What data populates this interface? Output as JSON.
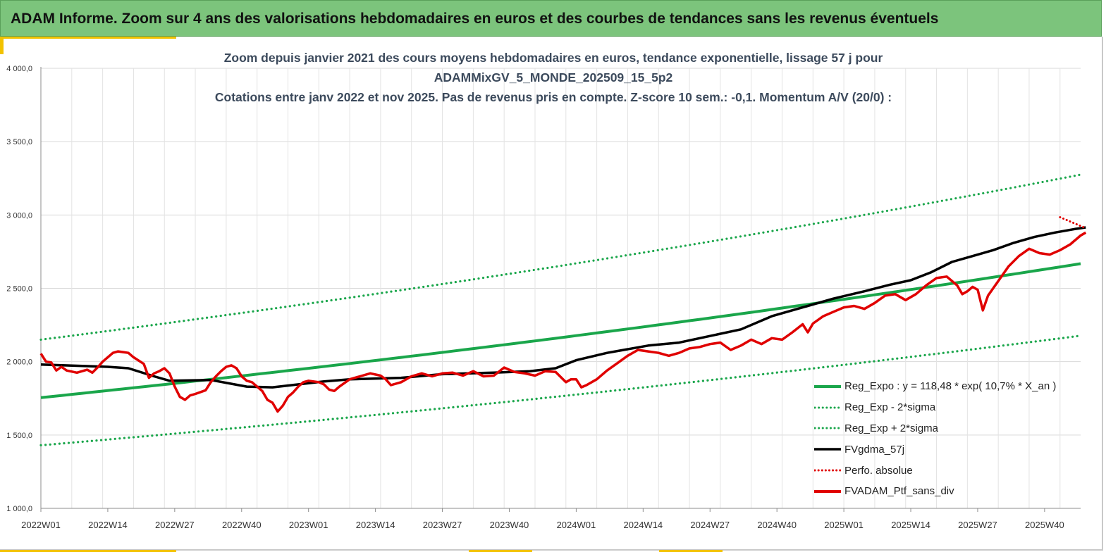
{
  "banner": {
    "title": "ADAM Informe. Zoom sur 4 ans des valorisations hebdomadaires en euros et des courbes de tendances sans les revenus éventuels"
  },
  "colors": {
    "banner_bg": "#7cc47c",
    "reg_expo": "#1aa64b",
    "sigma": "#1aa64b",
    "gdma": "#000000",
    "perfo": "#e00000",
    "ptf": "#e00000",
    "accent": "#f2c200"
  },
  "chart_data": {
    "type": "line",
    "title_lines": [
      "Zoom depuis janvier 2021 des cours moyens hebdomadaires  en euros, tendance exponentielle, lissage 57 j pour",
      "ADAMMixGV_5_MONDE_202509_15_5p2",
      "Cotations entre janv 2022 et nov 2025. Pas de revenus pris en compte. Z-score 10 sem.: -0,1. Momentum A/V (20/0) :"
    ],
    "ylim": [
      1000,
      4000
    ],
    "y_ticks": [
      "1 000,0",
      "1 500,0",
      "2 000,0",
      "2 500,0",
      "3 000,0",
      "3 500,0",
      "4 000,0"
    ],
    "y_tick_values": [
      1000,
      1500,
      2000,
      2500,
      3000,
      3500,
      4000
    ],
    "x_count": 203,
    "x_ticks": [
      "2022W01",
      "2022W14",
      "2022W27",
      "2022W40",
      "2023W01",
      "2023W14",
      "2023W27",
      "2023W40",
      "2024W01",
      "2024W14",
      "2024W27",
      "2024W40",
      "2025W01",
      "2025W14",
      "2025W27",
      "2025W40"
    ],
    "x_tick_index": [
      0,
      13,
      26,
      39,
      52,
      65,
      78,
      91,
      104,
      117,
      130,
      143,
      156,
      169,
      182,
      195
    ],
    "grid": true,
    "legend_position": "bottom-right",
    "series": [
      {
        "name": "Reg_Expo : y = 118,48 * exp( 10,7% *  X_an )",
        "style": "solid-thick",
        "formula": {
          "start": 1755,
          "end": 2668
        }
      },
      {
        "name": "Reg_Exp - 2*sigma",
        "style": "dotted",
        "formula": {
          "start": 1430,
          "end": 2177
        }
      },
      {
        "name": "Reg_Exp + 2*sigma",
        "style": "dotted",
        "formula": {
          "start": 2150,
          "end": 3275
        }
      },
      {
        "name": "FVgdma_57j",
        "style": "solid",
        "points": [
          [
            0,
            1980
          ],
          [
            13,
            1965
          ],
          [
            17,
            1955
          ],
          [
            22,
            1900
          ],
          [
            25,
            1870
          ],
          [
            33,
            1875
          ],
          [
            40,
            1830
          ],
          [
            45,
            1825
          ],
          [
            55,
            1865
          ],
          [
            60,
            1880
          ],
          [
            70,
            1890
          ],
          [
            78,
            1915
          ],
          [
            88,
            1925
          ],
          [
            95,
            1935
          ],
          [
            100,
            1955
          ],
          [
            104,
            2010
          ],
          [
            110,
            2060
          ],
          [
            118,
            2110
          ],
          [
            124,
            2130
          ],
          [
            130,
            2175
          ],
          [
            136,
            2220
          ],
          [
            142,
            2310
          ],
          [
            148,
            2370
          ],
          [
            154,
            2430
          ],
          [
            160,
            2480
          ],
          [
            165,
            2525
          ],
          [
            169,
            2555
          ],
          [
            173,
            2610
          ],
          [
            177,
            2680
          ],
          [
            181,
            2720
          ],
          [
            185,
            2760
          ],
          [
            189,
            2810
          ],
          [
            193,
            2850
          ],
          [
            197,
            2880
          ],
          [
            201,
            2905
          ],
          [
            203,
            2915
          ]
        ]
      },
      {
        "name": "Perfo. absolue",
        "style": "dotted",
        "points": [
          [
            198,
            2985
          ],
          [
            201,
            2940
          ],
          [
            203,
            2910
          ]
        ]
      },
      {
        "name": "FVADAM_Ptf_sans_div",
        "style": "solid-thick",
        "points": [
          [
            0,
            2055
          ],
          [
            1,
            2000
          ],
          [
            2,
            1995
          ],
          [
            3,
            1940
          ],
          [
            4,
            1965
          ],
          [
            5,
            1940
          ],
          [
            7,
            1925
          ],
          [
            9,
            1945
          ],
          [
            10,
            1925
          ],
          [
            11,
            1960
          ],
          [
            12,
            2000
          ],
          [
            13,
            2030
          ],
          [
            14,
            2060
          ],
          [
            15,
            2070
          ],
          [
            16,
            2065
          ],
          [
            17,
            2060
          ],
          [
            18,
            2030
          ],
          [
            20,
            1985
          ],
          [
            21,
            1890
          ],
          [
            22,
            1920
          ],
          [
            23,
            1935
          ],
          [
            24,
            1955
          ],
          [
            25,
            1920
          ],
          [
            26,
            1830
          ],
          [
            27,
            1760
          ],
          [
            28,
            1740
          ],
          [
            29,
            1770
          ],
          [
            30,
            1780
          ],
          [
            32,
            1805
          ],
          [
            33,
            1860
          ],
          [
            34,
            1900
          ],
          [
            35,
            1935
          ],
          [
            36,
            1965
          ],
          [
            37,
            1975
          ],
          [
            38,
            1955
          ],
          [
            39,
            1900
          ],
          [
            40,
            1870
          ],
          [
            41,
            1860
          ],
          [
            42,
            1830
          ],
          [
            43,
            1800
          ],
          [
            44,
            1740
          ],
          [
            45,
            1720
          ],
          [
            46,
            1660
          ],
          [
            47,
            1700
          ],
          [
            48,
            1760
          ],
          [
            49,
            1790
          ],
          [
            50,
            1830
          ],
          [
            51,
            1860
          ],
          [
            52,
            1870
          ],
          [
            54,
            1860
          ],
          [
            55,
            1845
          ],
          [
            56,
            1810
          ],
          [
            57,
            1800
          ],
          [
            58,
            1830
          ],
          [
            60,
            1880
          ],
          [
            62,
            1900
          ],
          [
            64,
            1920
          ],
          [
            66,
            1905
          ],
          [
            67,
            1880
          ],
          [
            68,
            1840
          ],
          [
            70,
            1860
          ],
          [
            72,
            1900
          ],
          [
            74,
            1920
          ],
          [
            76,
            1900
          ],
          [
            78,
            1920
          ],
          [
            80,
            1925
          ],
          [
            82,
            1905
          ],
          [
            84,
            1935
          ],
          [
            86,
            1900
          ],
          [
            88,
            1905
          ],
          [
            90,
            1960
          ],
          [
            92,
            1930
          ],
          [
            94,
            1920
          ],
          [
            96,
            1905
          ],
          [
            98,
            1935
          ],
          [
            100,
            1930
          ],
          [
            102,
            1860
          ],
          [
            103,
            1880
          ],
          [
            104,
            1880
          ],
          [
            105,
            1825
          ],
          [
            106,
            1840
          ],
          [
            108,
            1880
          ],
          [
            110,
            1940
          ],
          [
            112,
            1990
          ],
          [
            114,
            2040
          ],
          [
            116,
            2080
          ],
          [
            118,
            2070
          ],
          [
            120,
            2060
          ],
          [
            122,
            2040
          ],
          [
            124,
            2060
          ],
          [
            126,
            2090
          ],
          [
            128,
            2100
          ],
          [
            130,
            2120
          ],
          [
            132,
            2130
          ],
          [
            134,
            2080
          ],
          [
            136,
            2110
          ],
          [
            138,
            2150
          ],
          [
            140,
            2120
          ],
          [
            142,
            2160
          ],
          [
            144,
            2150
          ],
          [
            146,
            2200
          ],
          [
            148,
            2255
          ],
          [
            149,
            2200
          ],
          [
            150,
            2260
          ],
          [
            152,
            2310
          ],
          [
            154,
            2340
          ],
          [
            156,
            2370
          ],
          [
            158,
            2380
          ],
          [
            160,
            2360
          ],
          [
            162,
            2400
          ],
          [
            164,
            2450
          ],
          [
            166,
            2460
          ],
          [
            168,
            2420
          ],
          [
            170,
            2460
          ],
          [
            172,
            2520
          ],
          [
            174,
            2570
          ],
          [
            176,
            2580
          ],
          [
            178,
            2520
          ],
          [
            179,
            2460
          ],
          [
            180,
            2480
          ],
          [
            181,
            2510
          ],
          [
            182,
            2490
          ],
          [
            183,
            2350
          ],
          [
            184,
            2450
          ],
          [
            186,
            2550
          ],
          [
            188,
            2650
          ],
          [
            190,
            2720
          ],
          [
            192,
            2770
          ],
          [
            194,
            2740
          ],
          [
            196,
            2730
          ],
          [
            198,
            2760
          ],
          [
            200,
            2800
          ],
          [
            202,
            2860
          ],
          [
            203,
            2880
          ]
        ]
      }
    ]
  }
}
